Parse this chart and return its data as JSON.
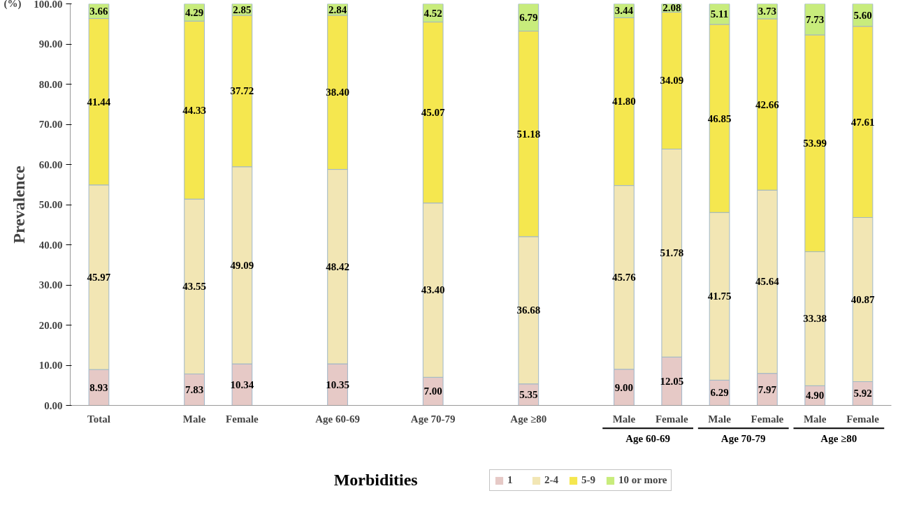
{
  "chart_data": {
    "type": "bar",
    "stacked": true,
    "ylabel": "Prevalence",
    "xlabel": "Morbidities",
    "annotations": [
      "(%)",
      "Age 60-69",
      "Age 70-79",
      "Age ≥80"
    ],
    "categories": [
      "Total",
      null,
      "Male",
      "Female",
      null,
      "Age 60-69",
      null,
      "Age 70-79",
      null,
      "Age ≥80",
      null,
      "Male",
      "Female",
      "Male",
      "Female",
      "Male",
      "Female"
    ],
    "series": [
      {
        "name": "1",
        "color": "#e6c9c6",
        "values": [
          8.93,
          null,
          7.83,
          10.34,
          null,
          10.35,
          null,
          7.0,
          null,
          5.35,
          null,
          9.0,
          12.05,
          6.29,
          7.97,
          4.9,
          5.92
        ],
        "value_labels": [
          "8.93",
          null,
          "7.83",
          "10.34",
          null,
          "10.35",
          null,
          "7.00",
          null,
          "5.35",
          null,
          "9.00",
          "12.05",
          "6.29",
          "7.97",
          "4.90",
          "5.92"
        ]
      },
      {
        "name": "2-4",
        "color": "#f2e6b4",
        "values": [
          45.97,
          null,
          43.55,
          49.09,
          null,
          48.42,
          null,
          43.4,
          null,
          36.68,
          null,
          45.76,
          51.78,
          41.75,
          45.64,
          33.38,
          40.87
        ],
        "value_labels": [
          "45.97",
          null,
          "43.55",
          "49.09",
          null,
          "48.42",
          null,
          "43.40",
          null,
          "36.68",
          null,
          "45.76",
          "51.78",
          "41.75",
          "45.64",
          "33.38",
          "40.87"
        ]
      },
      {
        "name": "5-9",
        "color": "#f5e74f",
        "values": [
          41.44,
          null,
          44.33,
          37.72,
          null,
          38.4,
          null,
          45.07,
          null,
          51.18,
          null,
          41.8,
          34.09,
          46.85,
          42.66,
          53.99,
          47.61
        ],
        "value_labels": [
          "41.44",
          null,
          "44.33",
          "37.72",
          null,
          "38.40",
          null,
          "45.07",
          null,
          "51.18",
          null,
          "41.80",
          "34.09",
          "46.85",
          "42.66",
          "53.99",
          "47.61"
        ]
      },
      {
        "name": "10 or more",
        "color": "#c8ec7c",
        "values": [
          3.66,
          null,
          4.29,
          2.85,
          null,
          2.84,
          null,
          4.52,
          null,
          6.79,
          null,
          3.44,
          2.08,
          5.11,
          3.73,
          7.73,
          5.6
        ],
        "value_labels": [
          "3.66",
          null,
          "4.29",
          "2.85",
          null,
          "2.84",
          null,
          "4.52",
          null,
          "6.79",
          null,
          "3.44",
          "2.08",
          "5.11",
          "3.73",
          "7.73",
          "5.60"
        ]
      }
    ],
    "ylim": [
      0,
      100
    ],
    "yticks": [
      {
        "value": 0,
        "label": "0.00"
      },
      {
        "value": 10,
        "label": "10.00"
      },
      {
        "value": 20,
        "label": "20.00"
      },
      {
        "value": 30,
        "label": "30.00"
      },
      {
        "value": 40,
        "label": "40.00"
      },
      {
        "value": 50,
        "label": "50.00"
      },
      {
        "value": 60,
        "label": "60.00"
      },
      {
        "value": 70,
        "label": "70.00"
      },
      {
        "value": 80,
        "label": "80.00"
      },
      {
        "value": 90,
        "label": "90.00"
      },
      {
        "value": 100,
        "label": "100.00"
      }
    ],
    "grid": false,
    "legend": "bottom"
  }
}
